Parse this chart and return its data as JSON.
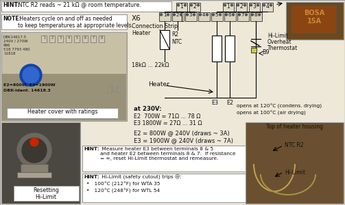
{
  "bg_color": "#ede8d8",
  "border_color": "#999999",
  "hint_top_label": "HINT:",
  "hint_top_text": " NTC R2 reads ~ 21 kΩ @ room temperature.",
  "note_label": "NOTE:",
  "note_text": " Heaters cycle on and off as needed\nto keep temperatures at appropriate levels.",
  "heater_cover_label": "Heater cover with ratings",
  "resetting_label": "Resetting\nHi-Limit",
  "x6_label": "X6",
  "connection_strip": "Connection Strip\nHeater",
  "r2_label": "R2",
  "ntc_label": "NTC",
  "resistance_range": "18kΩ ... 22kΩ",
  "heater_label": "Heater",
  "at_230v": "at 230V:",
  "e2_230": "E2  700W = 71Ω ... 78 Ω",
  "e3_230": "E3 1800W = 27Ω ... 31 Ω",
  "e2_240": "E2 = 800W @ 240V (draws ~ 3A)",
  "e3_240": "E3 = 1900W @ 240V (draws ~ 7A)",
  "hilimit_label1": "Hi-Limit",
  "hilimit_label2": "Overheat",
  "hilimit_label3": "Thermostat",
  "b9_label": "B9",
  "e3_label": "E3",
  "e2_label": "E2",
  "opens_120": "opens at 120°C (condens. drying)",
  "opens_100": "opens at 100°C (air drying)",
  "hint_measure_label": "HINT:",
  "hint_measure_text": " Measure heater E3 between terminals 8 & 5\nand heater E2 between terminals 8 & 7.  If resistance\n= ∞, reset Hi-Limit thermostat and remeasure.",
  "hint_hilimit_label": "HINT:",
  "hint_hilimit_text": " Hi-Limit (safety cutout) trips @:",
  "bullet1": "•   100°C (212°F) for WTA 35",
  "bullet2": "•   120°C (248°F) for WTL 54",
  "top_heater_label": "Top of heater housing",
  "ntc_r2_arrow": "NTC R2",
  "hilimit_arrow": "Hi-Limit",
  "photo_label_text": "DBK14617.5\n240V / 270W\n996\n518 7793 480\n11818",
  "e2e3_label": "E2=800W, E3=1900W",
  "dbk_label": "DBK-Ident. 14618.3",
  "row1": [
    "1",
    "2"
  ],
  "row2": [
    "1",
    "2",
    "3",
    "4"
  ],
  "row3": [
    "1",
    "2",
    "3",
    "4",
    "5",
    "6",
    "7",
    "8"
  ]
}
